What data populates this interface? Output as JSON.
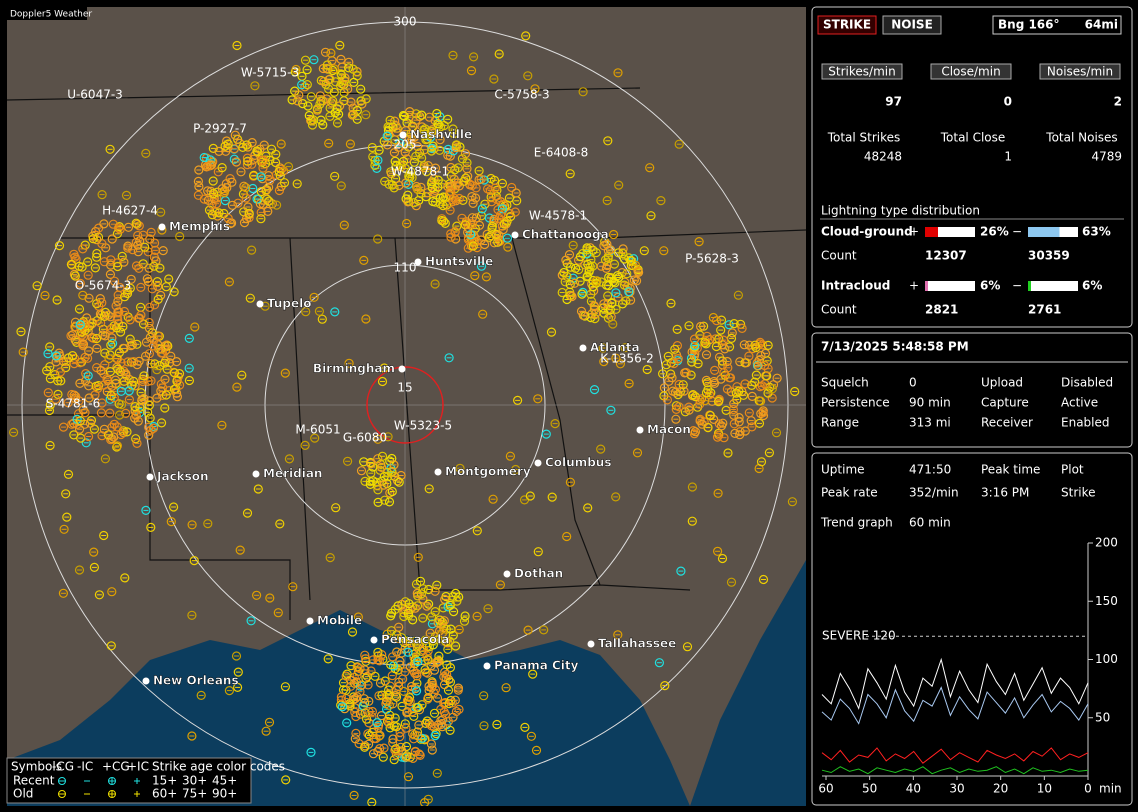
{
  "map": {
    "badge": "Doppler5 Weather",
    "range_labels": [
      "300",
      "205",
      "110",
      "15"
    ],
    "cities": [
      "Nashville",
      "Memphis",
      "Chattanooga",
      "Huntsville",
      "Tupelo",
      "Birmingham",
      "Atlanta",
      "Macon",
      "Jackson",
      "Meridian",
      "Montgomery",
      "Columbus",
      "Dothan",
      "Mobile",
      "Pensacola",
      "Tallahassee",
      "Panama City",
      "New Orleans"
    ],
    "storm_labels": [
      "W-5715-3",
      "U-6047-3",
      "C-5758-3",
      "P-2927-7",
      "E-6408-8",
      "W-4878-1",
      "H-4627-4",
      "W-4578-1",
      "P-5628-3",
      "O-5674-3",
      "S-4781-6",
      "K-1356-2",
      "M-6051",
      "W-5323-5",
      "G-6080"
    ]
  },
  "legend": {
    "symbols": "Symbols",
    "types": [
      "-CG",
      "-IC",
      "+CG",
      "+IC"
    ],
    "age_title": "Strike age color codes",
    "recent": "Recent",
    "old": "Old",
    "recent_ages": [
      "15+",
      "30+",
      "45+"
    ],
    "old_ages": [
      "60+",
      "75+",
      "90+"
    ]
  },
  "panel": {
    "strike_btn": "STRIKE",
    "noise_btn": "NOISE",
    "bearing": "Bng 166°",
    "distance": "64mi",
    "rates": [
      {
        "label": "Strikes/min",
        "value": 97
      },
      {
        "label": "Close/min",
        "value": 0
      },
      {
        "label": "Noises/min",
        "value": 2
      }
    ],
    "totals": [
      {
        "label": "Total Strikes",
        "value": 48248
      },
      {
        "label": "Total Close",
        "value": 1
      },
      {
        "label": "Total Noises",
        "value": 4789
      }
    ],
    "dist_title": "Lightning type distribution",
    "dist": [
      {
        "label": "Cloud-ground",
        "plus": "+",
        "minus": "−",
        "plus_pct": {
          "value": 26,
          "label": "26%"
        },
        "minus_pct": {
          "value": 63,
          "label": "63%"
        },
        "plus_color": "#e00000",
        "minus_color": "#8ec8f0",
        "count_label": "Count",
        "plus_count": 12307,
        "minus_count": 30359
      },
      {
        "label": "Intracloud",
        "plus": "+",
        "minus": "−",
        "plus_pct": {
          "value": 6,
          "label": "6%"
        },
        "minus_pct": {
          "value": 6,
          "label": "6%"
        },
        "plus_color": "#e070b0",
        "minus_color": "#20d020",
        "count_label": "Count",
        "plus_count": 2821,
        "minus_count": 2761
      }
    ],
    "datetime": "7/13/2025 5:48:58 PM",
    "settings": [
      [
        {
          "label": "Squelch",
          "value": 0
        },
        {
          "label": "Upload",
          "value": "Disabled"
        }
      ],
      [
        {
          "label": "Persistence",
          "value": "90 min"
        },
        {
          "label": "Capture",
          "value": "Active"
        }
      ],
      [
        {
          "label": "Range",
          "value": "313 mi"
        },
        {
          "label": "Receiver",
          "value": "Enabled"
        }
      ]
    ],
    "stats": [
      [
        {
          "label": "Uptime",
          "value": "471:50"
        },
        {
          "label": "Peak time",
          "value": "3:16 PM"
        },
        {
          "label": "Plot",
          "value": "Strike"
        }
      ],
      [
        {
          "label": "Peak rate",
          "value": "352/min"
        }
      ]
    ],
    "trend_label": "Trend graph",
    "trend_value": "60 min"
  },
  "trend": {
    "type": "line",
    "ylim": [
      0,
      200
    ],
    "yticks": [
      50,
      100,
      150,
      200
    ],
    "xlim": [
      60,
      0
    ],
    "xticks": [
      60,
      50,
      40,
      30,
      20,
      10,
      0
    ],
    "x_unit": "min",
    "severe": {
      "label": "SEVERE 120",
      "value": 120
    },
    "series": [
      {
        "color": "#ffffff",
        "values": [
          70,
          62,
          88,
          75,
          58,
          92,
          80,
          66,
          95,
          72,
          60,
          84,
          77,
          100,
          68,
          90,
          74,
          63,
          96,
          81,
          70,
          88,
          65,
          79,
          93,
          71,
          84,
          76,
          62,
          80
        ]
      },
      {
        "color": "#a8c8f0",
        "values": [
          55,
          48,
          66,
          58,
          45,
          70,
          62,
          50,
          74,
          56,
          47,
          65,
          60,
          76,
          52,
          68,
          57,
          49,
          72,
          63,
          54,
          67,
          50,
          61,
          70,
          55,
          64,
          58,
          48,
          62
        ]
      },
      {
        "color": "#ff2020",
        "values": [
          20,
          14,
          22,
          12,
          18,
          16,
          24,
          13,
          19,
          15,
          21,
          11,
          17,
          23,
          14,
          20,
          16,
          12,
          22,
          18,
          15,
          19,
          13,
          21,
          17,
          24,
          14,
          19,
          16,
          20
        ]
      },
      {
        "color": "#20c020",
        "values": [
          5,
          3,
          8,
          4,
          6,
          2,
          7,
          5,
          3,
          6,
          4,
          8,
          2,
          5,
          7,
          3,
          6,
          4,
          5,
          8,
          3,
          6,
          2,
          7,
          4,
          5,
          3,
          6,
          4,
          5
        ]
      }
    ]
  }
}
